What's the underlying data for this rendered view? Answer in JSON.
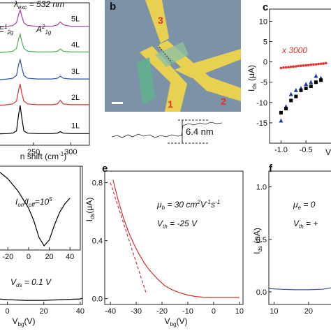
{
  "chart_data": [
    {
      "type": "line",
      "xlim": [
        203,
        325
      ],
      "xticks": [
        250,
        300
      ],
      "ylim": [
        0,
        10
      ],
      "xlabel": [
        "n shift (cm",
        {
          "sup": "-1"
        },
        ")"
      ],
      "annotations": [
        [
          "λ",
          {
            "sub": "exc"
          },
          " = 532 nm"
        ],
        [
          "E",
          {
            "sup": "1"
          },
          {
            "sub": "2g"
          }
        ],
        [
          "A",
          {
            "sup": "2"
          },
          {
            "sub": "1g"
          }
        ]
      ],
      "x": [
        203,
        215,
        222,
        227,
        230,
        232,
        234,
        237,
        242,
        255,
        275,
        282,
        286,
        290,
        300,
        325
      ],
      "series": [
        {
          "name": "5L",
          "color": "#a040a0",
          "values": [
            8.3,
            8.35,
            8.4,
            8.6,
            9.2,
            9.5,
            9.1,
            8.6,
            8.4,
            8.35,
            8.35,
            8.45,
            8.65,
            8.45,
            8.35,
            8.35
          ]
        },
        {
          "name": "4L",
          "color": "#4caf50",
          "values": [
            6.5,
            6.55,
            6.6,
            6.8,
            7.5,
            7.8,
            7.3,
            6.8,
            6.6,
            6.55,
            6.55,
            6.6,
            6.75,
            6.6,
            6.55,
            6.55
          ]
        },
        {
          "name": "3L",
          "color": "#3050a8",
          "values": [
            4.6,
            4.65,
            4.7,
            4.9,
            5.7,
            6.0,
            5.5,
            4.9,
            4.7,
            4.65,
            4.65,
            4.7,
            4.85,
            4.7,
            4.65,
            4.65
          ]
        },
        {
          "name": "2L",
          "color": "#d83030",
          "values": [
            2.8,
            2.85,
            2.9,
            3.1,
            3.9,
            4.3,
            3.7,
            3.1,
            2.9,
            2.85,
            2.85,
            2.9,
            3.15,
            2.9,
            2.85,
            2.85
          ]
        },
        {
          "name": "1L",
          "color": "#000000",
          "values": [
            0.8,
            0.82,
            0.85,
            1.0,
            2.2,
            2.8,
            2.0,
            1.0,
            0.85,
            0.82,
            0.82,
            0.85,
            0.95,
            0.85,
            0.82,
            0.82
          ]
        }
      ]
    },
    {
      "type": "scatter",
      "label": "c",
      "xlim": [
        -1.23,
        0.03
      ],
      "ylim": [
        -20,
        13
      ],
      "xticks": [
        {
          "value": -1,
          "label": "-1.0"
        },
        {
          "value": -0.5,
          "label": "-0.5"
        }
      ],
      "yticks": [
        10,
        5,
        0,
        -5,
        -10,
        -15
      ],
      "xlabel": [
        "V"
      ],
      "ylabel": [
        "I",
        {
          "sub": "ds"
        },
        " (μA)"
      ],
      "annotations": [
        [
          "x 3000"
        ]
      ],
      "series": [
        {
          "color": "#e03030",
          "marker": "circle",
          "x": [
            -1.0,
            -0.95,
            -0.9,
            -0.85,
            -0.8,
            -0.75,
            -0.7,
            -0.65,
            -0.6,
            -0.55,
            -0.5,
            -0.45,
            -0.4,
            -0.35,
            -0.3,
            -0.25,
            -0.2,
            -0.15,
            -0.1
          ],
          "values": [
            -1.5,
            -1.4,
            -1.35,
            -1.3,
            -1.2,
            -1.15,
            -1.1,
            -1.0,
            -0.95,
            -0.9,
            -0.85,
            -0.8,
            -0.7,
            -0.65,
            -0.6,
            -0.5,
            -0.45,
            -0.4,
            -0.3
          ]
        },
        {
          "color": "#2040a0",
          "marker": "triangle",
          "x": [
            -1.0,
            -0.9,
            -0.8,
            -0.7,
            -0.6,
            -0.5,
            -0.4,
            -0.3,
            -0.2
          ],
          "values": [
            -14.5,
            -11,
            -8,
            -7,
            -6.5,
            -5.5,
            -5,
            -3.5,
            -4
          ]
        },
        {
          "color": "#000000",
          "marker": "square",
          "x": [
            -1.0,
            -0.9,
            -0.8,
            -0.7,
            -0.6,
            -0.5,
            -0.4,
            -0.3,
            -0.2
          ],
          "values": [
            -12.5,
            -11.5,
            -9.5,
            -8.5,
            -7,
            -6.5,
            -6,
            -5,
            -4.5
          ]
        }
      ]
    },
    {
      "type": "line",
      "xlim": [
        -4.8,
        41.2
      ],
      "xticks": [
        0,
        20,
        40
      ],
      "ylim": [
        0,
        1
      ],
      "xlabel": [
        "V",
        {
          "sub": "bg"
        },
        "(V)"
      ],
      "annotations": [
        [
          "I",
          {
            "sub": "on"
          },
          "/I",
          {
            "sub": "off"
          },
          "=10",
          {
            "sup": "5"
          }
        ],
        [
          "V",
          {
            "sub": "ds"
          },
          " = 0.1 V"
        ]
      ],
      "series": [
        {
          "color": "#000000",
          "x": [
            -4.8,
            0,
            10,
            20,
            30,
            40,
            41.2
          ],
          "values": [
            0.04,
            0.035,
            0.03,
            0.03,
            0.035,
            0.04,
            0.045
          ]
        }
      ],
      "inset": {
        "type": "line",
        "xlim": [
          -29,
          50
        ],
        "xticks": [
          -20,
          0,
          20,
          40
        ],
        "ylim": [
          0,
          1
        ],
        "series": [
          {
            "color": "#000000",
            "x": [
              -30,
              -25,
              -20,
              -10,
              0,
              5,
              10,
              15,
              20,
              25,
              30,
              35,
              40
            ],
            "values": [
              0.95,
              0.9,
              0.85,
              0.7,
              0.5,
              0.35,
              0.15,
              0.05,
              0.12,
              0.3,
              0.45,
              0.55,
              0.62
            ]
          }
        ]
      }
    },
    {
      "type": "line",
      "label": "e",
      "xlim": [
        -42.2,
        11.4
      ],
      "ylim": [
        -0.04,
        0.88
      ],
      "xticks": [
        -40,
        -30,
        -20,
        -10,
        0,
        10
      ],
      "yticks": [
        {
          "value": 0,
          "label": "0.0"
        },
        {
          "value": 0.4,
          "label": "0.4"
        },
        {
          "value": 0.8,
          "label": "0.8"
        }
      ],
      "xlabel": [
        "V",
        {
          "sub": "bg"
        },
        "(V)"
      ],
      "ylabel": [
        "I",
        {
          "sub": "ds"
        },
        "(μA)"
      ],
      "annotations": [
        [
          "μ",
          {
            "sub": "h"
          },
          " = 30 cm",
          {
            "sup": "2"
          },
          "V",
          {
            "sup": "-1"
          },
          "s",
          {
            "sup": "-1"
          }
        ],
        [
          "V",
          {
            "sub": "th"
          },
          " = -25 V"
        ]
      ],
      "series": [
        {
          "color": "#d03030",
          "x": [
            -39,
            -37,
            -35,
            -33,
            -31,
            -29,
            -27,
            -25,
            -22,
            -19,
            -16,
            -13,
            -10,
            -7,
            -4,
            0,
            5,
            10
          ],
          "values": [
            0.82,
            0.68,
            0.56,
            0.46,
            0.38,
            0.31,
            0.25,
            0.2,
            0.14,
            0.09,
            0.06,
            0.04,
            0.025,
            0.015,
            0.01,
            0.008,
            0.008,
            0.008
          ]
        },
        {
          "color": "#d03030",
          "dash": true,
          "x": [
            -40,
            -26
          ],
          "values": [
            0.8,
            0.03
          ]
        }
      ]
    },
    {
      "type": "line",
      "label": "f",
      "xlim": [
        8.5,
        26.9
      ],
      "ylim": [
        -0.12,
        1.15
      ],
      "xticks": [
        10,
        20
      ],
      "yticks": [
        {
          "value": 0,
          "label": "0.0"
        },
        {
          "value": 0.5,
          "label": "0.5"
        },
        {
          "value": 1,
          "label": "1.0"
        }
      ],
      "ylabel": [
        "I",
        {
          "sub": "ds"
        },
        " (nA)"
      ],
      "annotations": [
        [
          "μ",
          {
            "sub": "e"
          },
          " = 0"
        ],
        [
          "V",
          {
            "sub": "th"
          },
          " = +"
        ]
      ],
      "series": [
        {
          "color": "#3a50b0",
          "x": [
            8.5,
            12,
            16,
            20,
            24,
            26.9
          ],
          "values": [
            0.03,
            0.025,
            0.02,
            0.02,
            0.025,
            0.04
          ]
        }
      ]
    }
  ],
  "image_panel": {
    "label": "b",
    "electrodes": [
      "3",
      "1",
      "2"
    ],
    "step_label": "6.4 nm"
  }
}
